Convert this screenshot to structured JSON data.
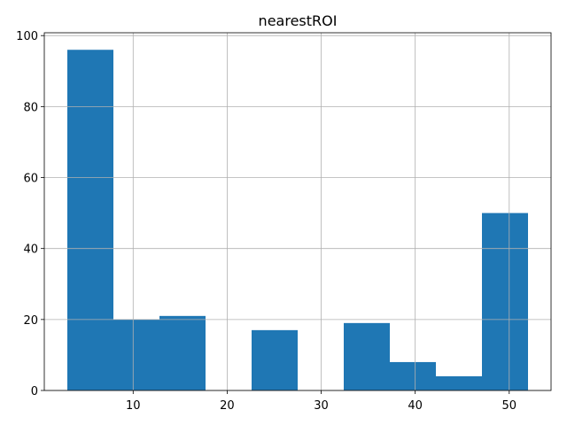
{
  "chart_data": {
    "type": "bar",
    "title": "nearestROI",
    "xlabel": "",
    "ylabel": "",
    "xlim": [
      0.55,
      54.45
    ],
    "ylim": [
      0,
      100.8
    ],
    "grid": true,
    "bar_color": "#1f77b4",
    "bins": [
      {
        "x0": 3.0,
        "x1": 7.9,
        "count": 96
      },
      {
        "x0": 7.9,
        "x1": 12.8,
        "count": 20
      },
      {
        "x0": 12.8,
        "x1": 17.7,
        "count": 21
      },
      {
        "x0": 17.7,
        "x1": 22.6,
        "count": 0
      },
      {
        "x0": 22.6,
        "x1": 27.5,
        "count": 17
      },
      {
        "x0": 27.5,
        "x1": 32.4,
        "count": 0
      },
      {
        "x0": 32.4,
        "x1": 37.3,
        "count": 19
      },
      {
        "x0": 37.3,
        "x1": 42.2,
        "count": 8
      },
      {
        "x0": 42.2,
        "x1": 47.1,
        "count": 4
      },
      {
        "x0": 47.1,
        "x1": 52.0,
        "count": 50
      }
    ],
    "x_ticks": [
      10,
      20,
      30,
      40,
      50
    ],
    "y_ticks": [
      0,
      20,
      40,
      60,
      80,
      100
    ]
  }
}
